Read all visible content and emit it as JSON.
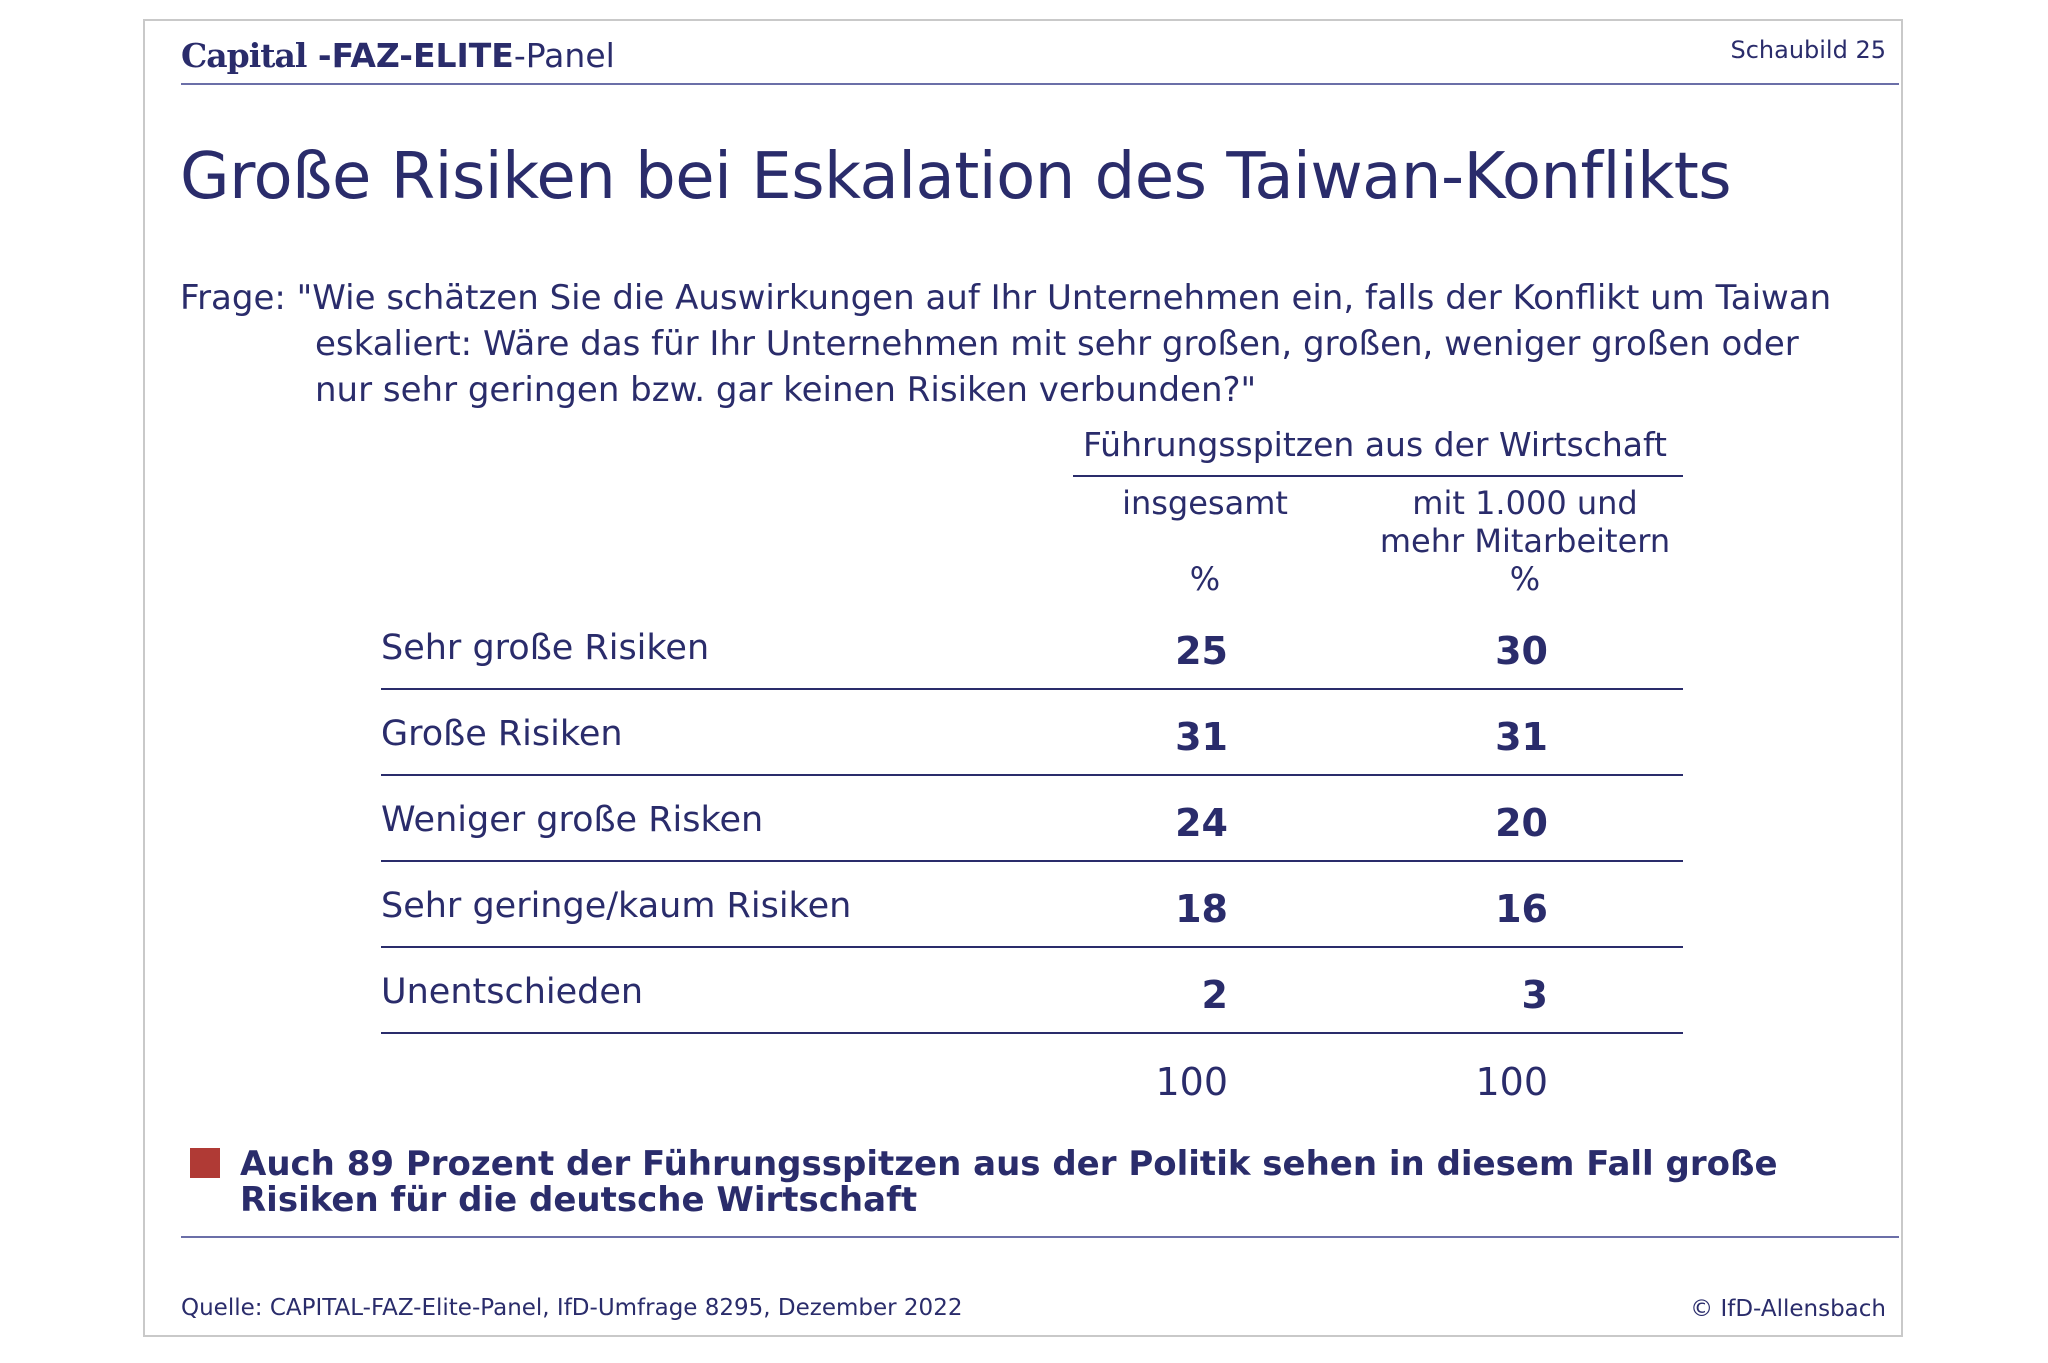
{
  "header": {
    "brand_capital": "Capital",
    "brand_faz": " -FAZ-ELITE",
    "brand_panel": "-Panel",
    "chart_number": "Schaubild 25"
  },
  "chart_data": {
    "type": "table",
    "title": "Große Risiken bei Eskalation des Taiwan-Konflikts",
    "question": [
      "Frage: \"Wie schätzen Sie die Auswirkungen auf Ihr Unternehmen ein, falls der Konflikt um Taiwan",
      "eskaliert: Wäre das für Ihr Unternehmen mit sehr großen, großen, weniger großen oder",
      "nur sehr geringen bzw. gar keinen Risiken verbunden?\""
    ],
    "group_header": "Führungsspitzen aus der Wirtschaft",
    "columns": [
      {
        "label": "insgesamt",
        "unit": "%"
      },
      {
        "label": "mit 1.000 und\nmehr Mitarbeitern",
        "unit": "%"
      }
    ],
    "rows": [
      {
        "label": "Sehr große Risiken",
        "values": [
          25,
          30
        ]
      },
      {
        "label": "Große Risiken",
        "values": [
          31,
          31
        ]
      },
      {
        "label": "Weniger große Risken",
        "values": [
          24,
          20
        ]
      },
      {
        "label": "Sehr geringe/kaum Risiken",
        "values": [
          18,
          16
        ]
      },
      {
        "label": "Unentschieden",
        "values": [
          2,
          3
        ]
      }
    ],
    "totals": [
      100,
      100
    ]
  },
  "note": "Auch 89 Prozent der Führungsspitzen aus der Politik sehen in diesem Fall große Risiken für die deutsche Wirtschaft",
  "colors": {
    "text": "#2a2c6b",
    "accent": "#b03a35",
    "rule": "#6b6fa8"
  },
  "footer": {
    "source": "Quelle: CAPITAL-FAZ-Elite-Panel, IfD-Umfrage 8295, Dezember 2022",
    "copyright": "© IfD-Allensbach"
  }
}
